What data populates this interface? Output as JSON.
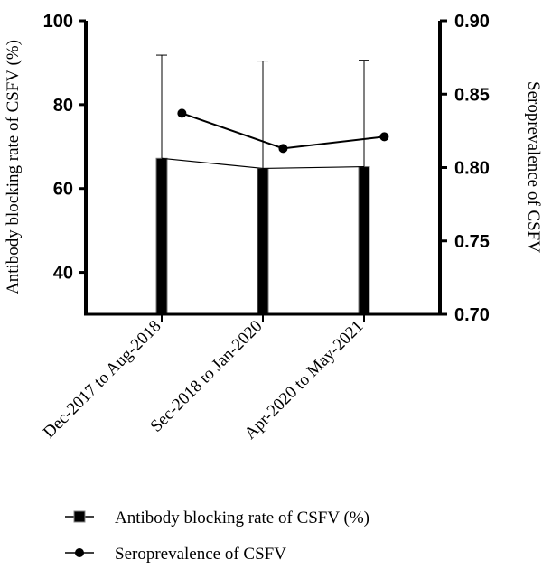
{
  "chart_data": {
    "type": "bar",
    "categories": [
      "Dec-2017 to Aug-2018",
      "Sec-2018 to Jan-2020",
      "Apr-2020 to May-2021"
    ],
    "series": [
      {
        "name": "Antibody blocking rate of CSFV (%)",
        "type": "bar",
        "axis": "left",
        "values": [
          67.2,
          64.8,
          65.2
        ],
        "error_upper": [
          91.8,
          90.4,
          90.6
        ],
        "color": "#000000"
      },
      {
        "name": "Seroprevalence of CSFV",
        "type": "line",
        "axis": "right",
        "values": [
          0.837,
          0.813,
          0.821
        ],
        "color": "#000000"
      }
    ],
    "ylabel_left": "Antibody blocking rate of CSFV (%)",
    "ylabel_right": "Seroprevalence of CSFV",
    "ylim_left": [
      30,
      100
    ],
    "ylim_right": [
      0.7,
      0.9
    ],
    "yticks_left": [
      "40",
      "60",
      "80",
      "100"
    ],
    "yticks_right": [
      "0.70",
      "0.75",
      "0.80",
      "0.85",
      "0.90"
    ],
    "grid": false,
    "legend_position": "bottom"
  }
}
